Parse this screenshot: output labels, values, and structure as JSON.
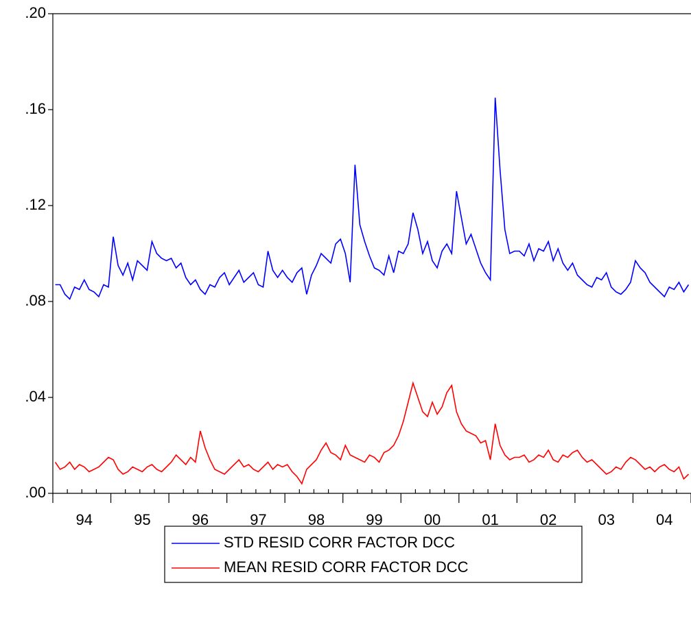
{
  "chart_data": {
    "type": "line",
    "categories": [
      null,
      null,
      null,
      null,
      null,
      null,
      "94",
      null,
      null,
      null,
      null,
      null,
      null,
      null,
      null,
      null,
      null,
      null,
      "95",
      null,
      null,
      null,
      null,
      null,
      null,
      null,
      null,
      null,
      null,
      null,
      "96",
      null,
      null,
      null,
      null,
      null,
      null,
      null,
      null,
      null,
      null,
      null,
      "97",
      null,
      null,
      null,
      null,
      null,
      null,
      null,
      null,
      null,
      null,
      null,
      "98",
      null,
      null,
      null,
      null,
      null,
      null,
      null,
      null,
      null,
      null,
      null,
      "99",
      null,
      null,
      null,
      null,
      null,
      null,
      null,
      null,
      null,
      null,
      null,
      "00",
      null,
      null,
      null,
      null,
      null,
      null,
      null,
      null,
      null,
      null,
      null,
      "01",
      null,
      null,
      null,
      null,
      null,
      null,
      null,
      null,
      null,
      null,
      null,
      "02",
      null,
      null,
      null,
      null,
      null,
      null,
      null,
      null,
      null,
      null,
      null,
      "03",
      null,
      null,
      null,
      null,
      null,
      null,
      null,
      null,
      null,
      null,
      null,
      "04",
      null,
      null,
      null,
      null,
      null
    ],
    "series": [
      {
        "name": "STD RESID CORR FACTOR DCC",
        "color": "#0000ff",
        "values": [
          0.087,
          0.087,
          0.083,
          0.081,
          0.086,
          0.085,
          0.089,
          0.085,
          0.084,
          0.082,
          0.087,
          0.086,
          0.107,
          0.095,
          0.091,
          0.096,
          0.089,
          0.097,
          0.095,
          0.093,
          0.105,
          0.1,
          0.098,
          0.097,
          0.098,
          0.094,
          0.096,
          0.09,
          0.087,
          0.089,
          0.085,
          0.083,
          0.087,
          0.086,
          0.09,
          0.092,
          0.087,
          0.09,
          0.093,
          0.088,
          0.09,
          0.092,
          0.087,
          0.086,
          0.101,
          0.093,
          0.09,
          0.093,
          0.09,
          0.088,
          0.092,
          0.094,
          0.083,
          0.091,
          0.095,
          0.1,
          0.098,
          0.096,
          0.104,
          0.106,
          0.1,
          0.088,
          0.137,
          0.112,
          0.105,
          0.099,
          0.094,
          0.093,
          0.091,
          0.099,
          0.092,
          0.101,
          0.1,
          0.104,
          0.117,
          0.11,
          0.1,
          0.105,
          0.097,
          0.094,
          0.101,
          0.104,
          0.1,
          0.126,
          0.115,
          0.104,
          0.108,
          0.102,
          0.096,
          0.092,
          0.089,
          0.165,
          0.135,
          0.11,
          0.1,
          0.101,
          0.101,
          0.099,
          0.104,
          0.097,
          0.102,
          0.101,
          0.105,
          0.097,
          0.102,
          0.096,
          0.093,
          0.096,
          0.091,
          0.089,
          0.087,
          0.086,
          0.09,
          0.089,
          0.092,
          0.086,
          0.084,
          0.083,
          0.085,
          0.088,
          0.097,
          0.094,
          0.092,
          0.088,
          0.086,
          0.084,
          0.082,
          0.086,
          0.085,
          0.088,
          0.084,
          0.087
        ]
      },
      {
        "name": "MEAN RESID CORR FACTOR DCC",
        "color": "#ff0000",
        "values": [
          0.013,
          0.01,
          0.011,
          0.013,
          0.01,
          0.012,
          0.011,
          0.009,
          0.01,
          0.011,
          0.013,
          0.015,
          0.014,
          0.01,
          0.008,
          0.009,
          0.011,
          0.01,
          0.009,
          0.011,
          0.012,
          0.01,
          0.009,
          0.011,
          0.013,
          0.016,
          0.014,
          0.012,
          0.015,
          0.013,
          0.026,
          0.019,
          0.014,
          0.01,
          0.009,
          0.008,
          0.01,
          0.012,
          0.014,
          0.011,
          0.012,
          0.01,
          0.009,
          0.011,
          0.013,
          0.01,
          0.012,
          0.011,
          0.012,
          0.009,
          0.007,
          0.004,
          0.01,
          0.012,
          0.014,
          0.018,
          0.021,
          0.017,
          0.016,
          0.014,
          0.02,
          0.016,
          0.015,
          0.014,
          0.013,
          0.016,
          0.015,
          0.013,
          0.017,
          0.018,
          0.02,
          0.024,
          0.03,
          0.038,
          0.046,
          0.04,
          0.034,
          0.032,
          0.038,
          0.033,
          0.036,
          0.042,
          0.045,
          0.034,
          0.029,
          0.026,
          0.025,
          0.024,
          0.021,
          0.022,
          0.014,
          0.029,
          0.02,
          0.016,
          0.014,
          0.015,
          0.015,
          0.016,
          0.013,
          0.014,
          0.016,
          0.015,
          0.018,
          0.014,
          0.013,
          0.016,
          0.015,
          0.017,
          0.018,
          0.015,
          0.013,
          0.014,
          0.012,
          0.01,
          0.008,
          0.009,
          0.011,
          0.01,
          0.013,
          0.015,
          0.014,
          0.012,
          0.01,
          0.011,
          0.009,
          0.011,
          0.012,
          0.01,
          0.009,
          0.011,
          0.006,
          0.008
        ]
      }
    ],
    "ylim": [
      0,
      0.2
    ],
    "yticks": [
      {
        "value": 0,
        "label": ".00"
      },
      {
        "value": 0.04,
        "label": ".04"
      },
      {
        "value": 0.08,
        "label": ".08"
      },
      {
        "value": 0.12,
        "label": ".12"
      },
      {
        "value": 0.16,
        "label": ".16"
      },
      {
        "value": 0.2,
        "label": ".20"
      }
    ],
    "grid": false,
    "legend": "bottom"
  }
}
